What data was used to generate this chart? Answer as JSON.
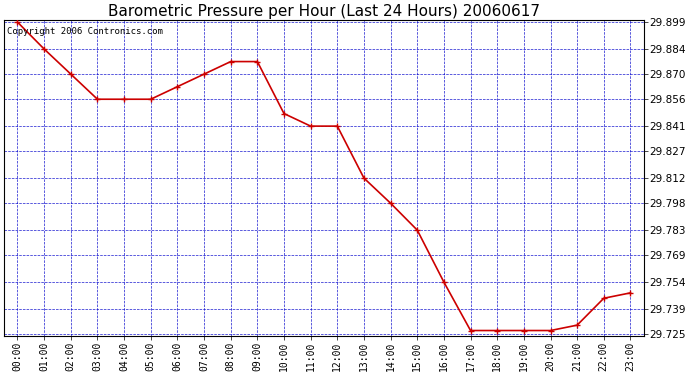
{
  "title": "Barometric Pressure per Hour (Last 24 Hours) 20060617",
  "copyright": "Copyright 2006 Contronics.com",
  "x_labels": [
    "00:00",
    "01:00",
    "02:00",
    "03:00",
    "04:00",
    "05:00",
    "06:00",
    "07:00",
    "08:00",
    "09:00",
    "10:00",
    "11:00",
    "12:00",
    "13:00",
    "14:00",
    "15:00",
    "16:00",
    "17:00",
    "18:00",
    "19:00",
    "20:00",
    "21:00",
    "22:00",
    "23:00"
  ],
  "y_values": [
    29.899,
    29.884,
    29.87,
    29.856,
    29.856,
    29.856,
    29.863,
    29.87,
    29.877,
    29.877,
    29.848,
    29.841,
    29.841,
    29.812,
    29.798,
    29.783,
    29.754,
    29.727,
    29.727,
    29.727,
    29.727,
    29.73,
    29.745,
    29.748
  ],
  "ylim_min": 29.725,
  "ylim_max": 29.899,
  "yticks": [
    29.725,
    29.739,
    29.754,
    29.769,
    29.783,
    29.798,
    29.812,
    29.827,
    29.841,
    29.856,
    29.87,
    29.884,
    29.899
  ],
  "line_color": "#cc0000",
  "marker_color": "#cc0000",
  "bg_color": "#ffffff",
  "plot_bg_color": "#ffffff",
  "grid_color": "#0000cc",
  "title_fontsize": 11,
  "copyright_fontsize": 6.5,
  "tick_fontsize": 7,
  "ytick_fontsize": 7.5,
  "figwidth": 6.9,
  "figheight": 3.75,
  "dpi": 100
}
